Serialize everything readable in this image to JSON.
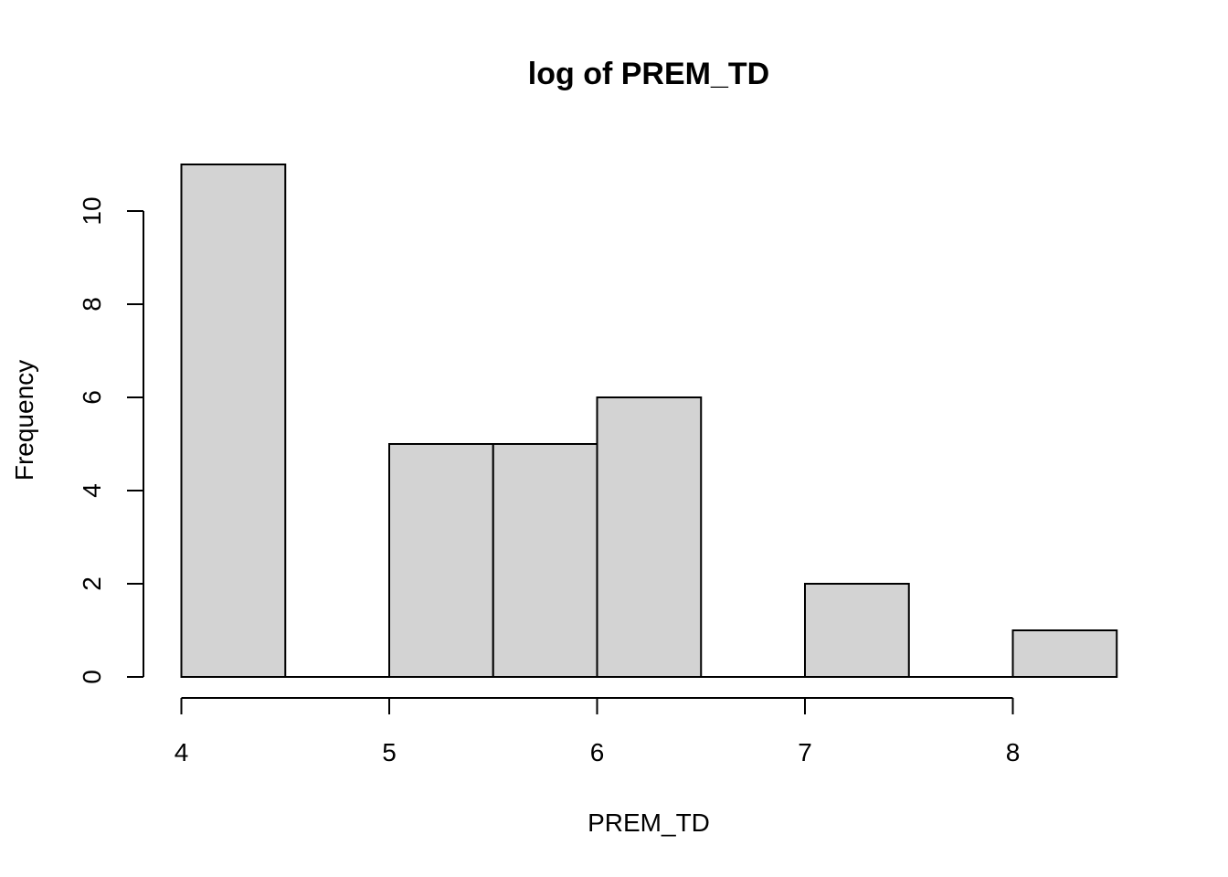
{
  "chart_data": {
    "type": "bar",
    "title": "log of PREM_TD",
    "xlabel": "PREM_TD",
    "ylabel": "Frequency",
    "bins": [
      {
        "x0": 4.0,
        "x1": 4.5,
        "count": 11
      },
      {
        "x0": 4.5,
        "x1": 5.0,
        "count": 0
      },
      {
        "x0": 5.0,
        "x1": 5.5,
        "count": 5
      },
      {
        "x0": 5.5,
        "x1": 6.0,
        "count": 5
      },
      {
        "x0": 6.0,
        "x1": 6.5,
        "count": 6
      },
      {
        "x0": 6.5,
        "x1": 7.0,
        "count": 0
      },
      {
        "x0": 7.0,
        "x1": 7.5,
        "count": 2
      },
      {
        "x0": 7.5,
        "x1": 8.0,
        "count": 0
      },
      {
        "x0": 8.0,
        "x1": 8.5,
        "count": 1
      }
    ],
    "xticks": [
      4,
      5,
      6,
      7,
      8
    ],
    "yticks": [
      0,
      2,
      4,
      6,
      8,
      10
    ],
    "xlim": [
      4,
      8.5
    ],
    "ylim": [
      0,
      11
    ],
    "bar_color": "#d3d3d3",
    "grid": false,
    "legend": "none"
  }
}
